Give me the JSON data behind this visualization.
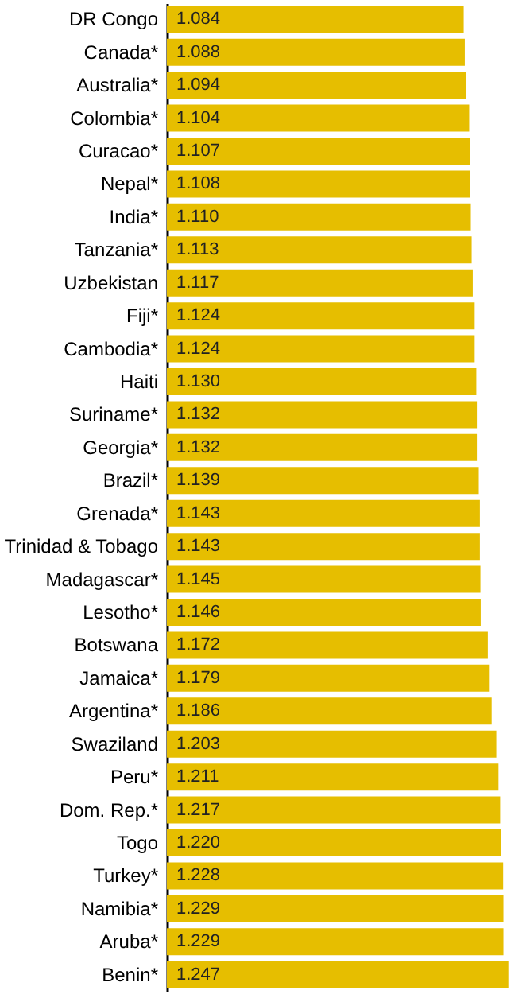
{
  "chart_data": {
    "type": "bar",
    "orientation": "horizontal",
    "categories": [
      "DR Congo",
      "Canada*",
      "Australia*",
      "Colombia*",
      "Curacao*",
      "Nepal*",
      "India*",
      "Tanzania*",
      "Uzbekistan",
      "Fiji*",
      "Cambodia*",
      "Haiti",
      "Suriname*",
      "Georgia*",
      "Brazil*",
      "Grenada*",
      "Trinidad & Tobago",
      "Madagascar*",
      "Lesotho*",
      "Botswana",
      "Jamaica*",
      "Argentina*",
      "Swaziland",
      "Peru*",
      "Dom. Rep.*",
      "Togo",
      "Turkey*",
      "Namibia*",
      "Aruba*",
      "Benin*"
    ],
    "values": [
      1.084,
      1.088,
      1.094,
      1.104,
      1.107,
      1.108,
      1.11,
      1.113,
      1.117,
      1.124,
      1.124,
      1.13,
      1.132,
      1.132,
      1.139,
      1.143,
      1.143,
      1.145,
      1.146,
      1.172,
      1.179,
      1.186,
      1.203,
      1.211,
      1.217,
      1.22,
      1.228,
      1.229,
      1.229,
      1.247
    ],
    "value_labels": [
      "1.084",
      "1.088",
      "1.094",
      "1.104",
      "1.107",
      "1.108",
      "1.110",
      "1.113",
      "1.117",
      "1.124",
      "1.124",
      "1.130",
      "1.132",
      "1.132",
      "1.139",
      "1.143",
      "1.143",
      "1.145",
      "1.146",
      "1.172",
      "1.179",
      "1.186",
      "1.203",
      "1.211",
      "1.217",
      "1.220",
      "1.228",
      "1.229",
      "1.229",
      "1.247"
    ],
    "color": "#e6be00",
    "xlim": [
      0,
      1.3
    ],
    "tick_labels": "y"
  }
}
